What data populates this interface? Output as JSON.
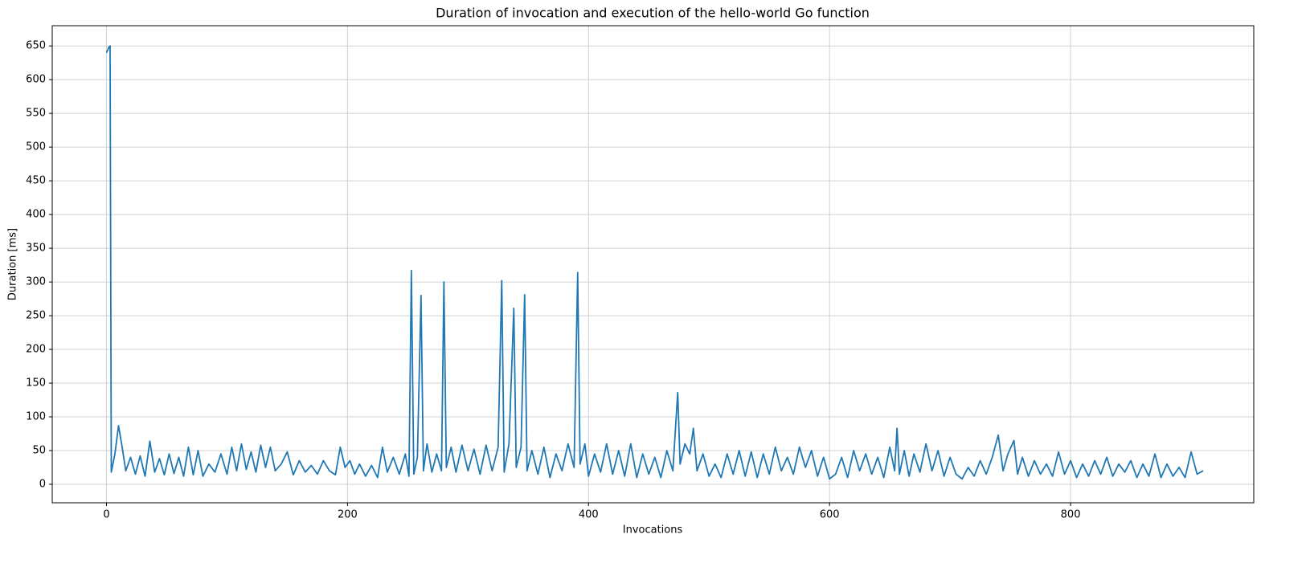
{
  "chart_data": {
    "type": "line",
    "title": "Duration of invocation and execution of the hello-world Go function",
    "xlabel": "Invocations",
    "ylabel": "Duration [ms]",
    "color": "#1f77b4",
    "grid": true,
    "xlim": [
      -45,
      952
    ],
    "ylim": [
      -27.4,
      680
    ],
    "xticks": [
      0,
      200,
      400,
      600,
      800
    ],
    "yticks": [
      0,
      50,
      100,
      150,
      200,
      250,
      300,
      350,
      400,
      450,
      500,
      550,
      600,
      650
    ],
    "x": [
      0,
      2,
      3,
      4,
      7,
      10,
      13,
      16,
      20,
      24,
      28,
      32,
      36,
      40,
      44,
      48,
      52,
      56,
      60,
      64,
      68,
      72,
      76,
      80,
      85,
      90,
      95,
      100,
      104,
      108,
      112,
      116,
      120,
      124,
      128,
      132,
      136,
      140,
      145,
      150,
      155,
      160,
      165,
      170,
      175,
      180,
      185,
      190,
      194,
      198,
      202,
      206,
      210,
      215,
      220,
      225,
      229,
      233,
      238,
      243,
      248,
      251,
      253,
      255,
      258,
      261,
      263,
      266,
      270,
      274,
      278,
      280,
      282,
      286,
      290,
      295,
      300,
      305,
      310,
      315,
      320,
      325,
      328,
      330,
      334,
      338,
      340,
      344,
      347,
      349,
      353,
      358,
      363,
      368,
      373,
      378,
      383,
      388,
      391,
      393,
      397,
      400,
      405,
      410,
      415,
      420,
      425,
      430,
      435,
      440,
      445,
      450,
      455,
      460,
      465,
      470,
      474,
      476,
      480,
      484,
      487,
      490,
      495,
      500,
      505,
      510,
      515,
      520,
      525,
      530,
      535,
      540,
      545,
      550,
      555,
      560,
      565,
      570,
      575,
      580,
      585,
      590,
      595,
      600,
      605,
      610,
      615,
      620,
      625,
      630,
      635,
      640,
      645,
      650,
      654,
      656,
      658,
      662,
      666,
      670,
      675,
      680,
      685,
      690,
      695,
      700,
      705,
      710,
      715,
      720,
      725,
      730,
      735,
      740,
      744,
      748,
      753,
      756,
      760,
      765,
      770,
      775,
      780,
      785,
      790,
      795,
      800,
      805,
      810,
      815,
      820,
      825,
      830,
      835,
      840,
      845,
      850,
      855,
      860,
      865,
      870,
      875,
      880,
      885,
      890,
      895,
      900,
      905,
      910
    ],
    "values": [
      640,
      648,
      650,
      18,
      45,
      87,
      55,
      20,
      40,
      15,
      42,
      12,
      64,
      18,
      38,
      14,
      45,
      16,
      40,
      12,
      55,
      14,
      50,
      12,
      30,
      18,
      45,
      15,
      55,
      20,
      60,
      22,
      48,
      18,
      58,
      25,
      55,
      20,
      30,
      48,
      14,
      35,
      18,
      28,
      15,
      35,
      20,
      14,
      55,
      25,
      35,
      15,
      30,
      12,
      28,
      10,
      55,
      18,
      40,
      15,
      45,
      12,
      317,
      15,
      40,
      280,
      20,
      60,
      18,
      45,
      20,
      300,
      25,
      55,
      18,
      58,
      20,
      52,
      15,
      58,
      20,
      55,
      302,
      18,
      60,
      261,
      25,
      55,
      281,
      20,
      50,
      15,
      55,
      10,
      45,
      20,
      60,
      25,
      314,
      30,
      60,
      12,
      45,
      18,
      60,
      15,
      50,
      12,
      60,
      10,
      45,
      15,
      40,
      10,
      50,
      20,
      136,
      30,
      60,
      45,
      83,
      20,
      45,
      12,
      30,
      10,
      45,
      15,
      50,
      12,
      48,
      10,
      45,
      15,
      55,
      20,
      40,
      15,
      55,
      25,
      50,
      12,
      40,
      8,
      15,
      40,
      10,
      50,
      20,
      45,
      15,
      40,
      10,
      55,
      20,
      83,
      15,
      50,
      12,
      45,
      18,
      60,
      20,
      50,
      12,
      40,
      15,
      8,
      25,
      12,
      35,
      15,
      40,
      73,
      20,
      45,
      65,
      15,
      40,
      12,
      35,
      15,
      30,
      12,
      48,
      15,
      35,
      10,
      30,
      12,
      35,
      15,
      40,
      12,
      30,
      18,
      35,
      10,
      30,
      12,
      45,
      10,
      30,
      12,
      25,
      10,
      48,
      15,
      20
    ]
  }
}
